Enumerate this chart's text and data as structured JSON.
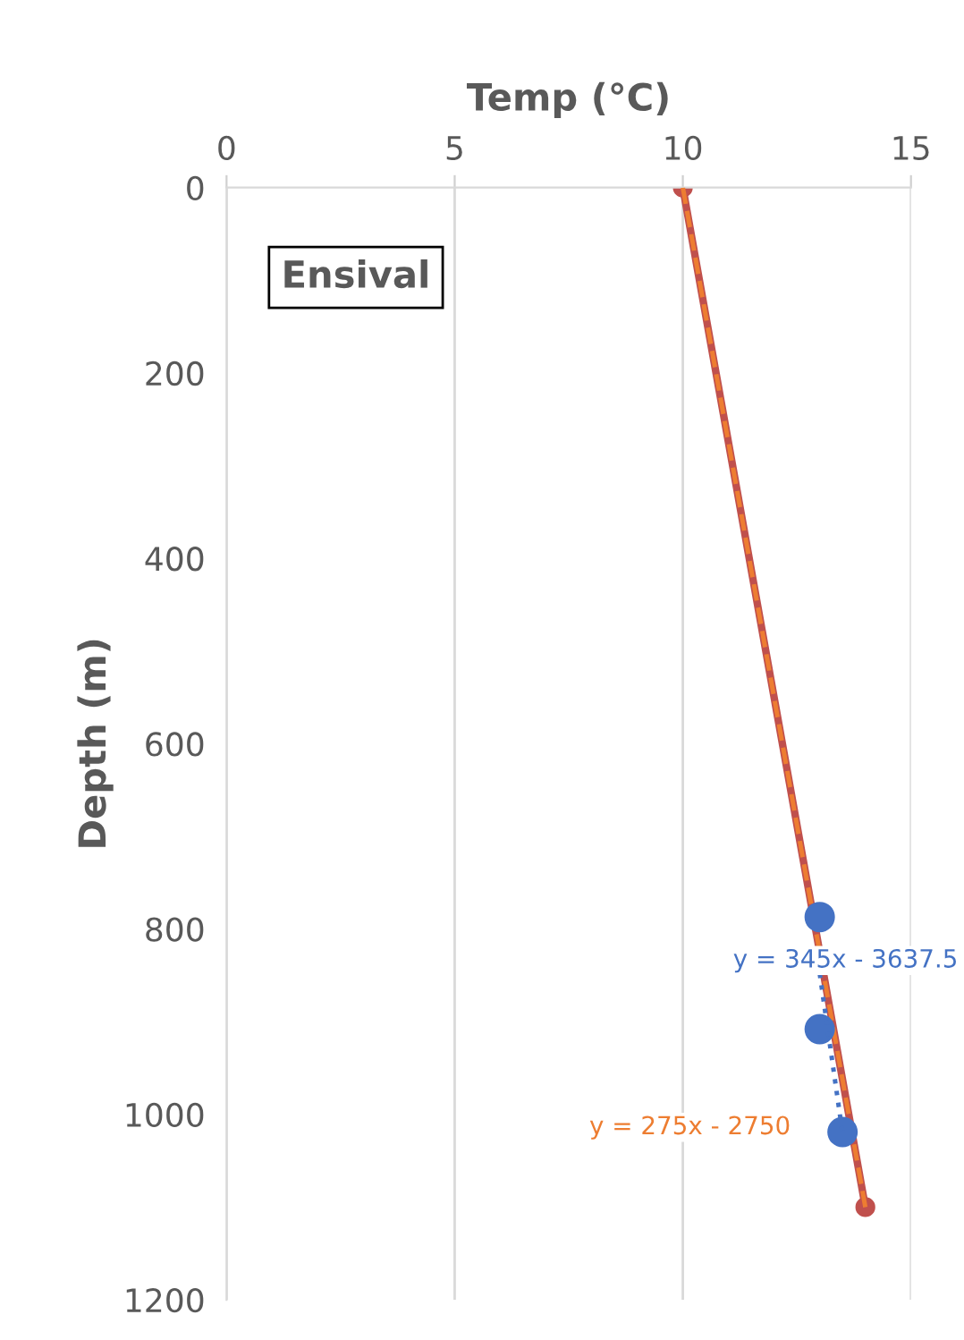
{
  "chart_data": {
    "type": "scatter",
    "xlabel": "Temp (°C)",
    "ylabel": "Depth (m)",
    "xlim": [
      0,
      15
    ],
    "xticks": [
      0,
      5,
      10,
      15
    ],
    "ylim": [
      1200,
      0
    ],
    "yticks": [
      0,
      200,
      400,
      600,
      800,
      1000,
      1200
    ],
    "grid": "x",
    "legend": false,
    "series": [
      {
        "type": "line",
        "color": "#c0504d",
        "x": [
          10,
          14
        ],
        "values": [
          0,
          1100
        ],
        "marker": "circle",
        "line_style": "solid"
      },
      {
        "type": "line",
        "color": "#ed7d31",
        "x": [
          10,
          14
        ],
        "values": [
          0,
          1100
        ],
        "marker": "none",
        "line_style": "dashed"
      },
      {
        "color": "#4472c4",
        "x": [
          13,
          13,
          13.5
        ],
        "values": [
          787,
          908,
          1019
        ],
        "marker": "circle"
      },
      {
        "type": "line",
        "color": "#4472c4",
        "x": [
          13,
          13.5
        ],
        "values": [
          848,
          1020
        ],
        "marker": "none",
        "line_style": "dotted"
      }
    ],
    "annotations": [
      "Ensival",
      "y = 345x - 3637.5",
      "y = 275x - 2750"
    ]
  }
}
